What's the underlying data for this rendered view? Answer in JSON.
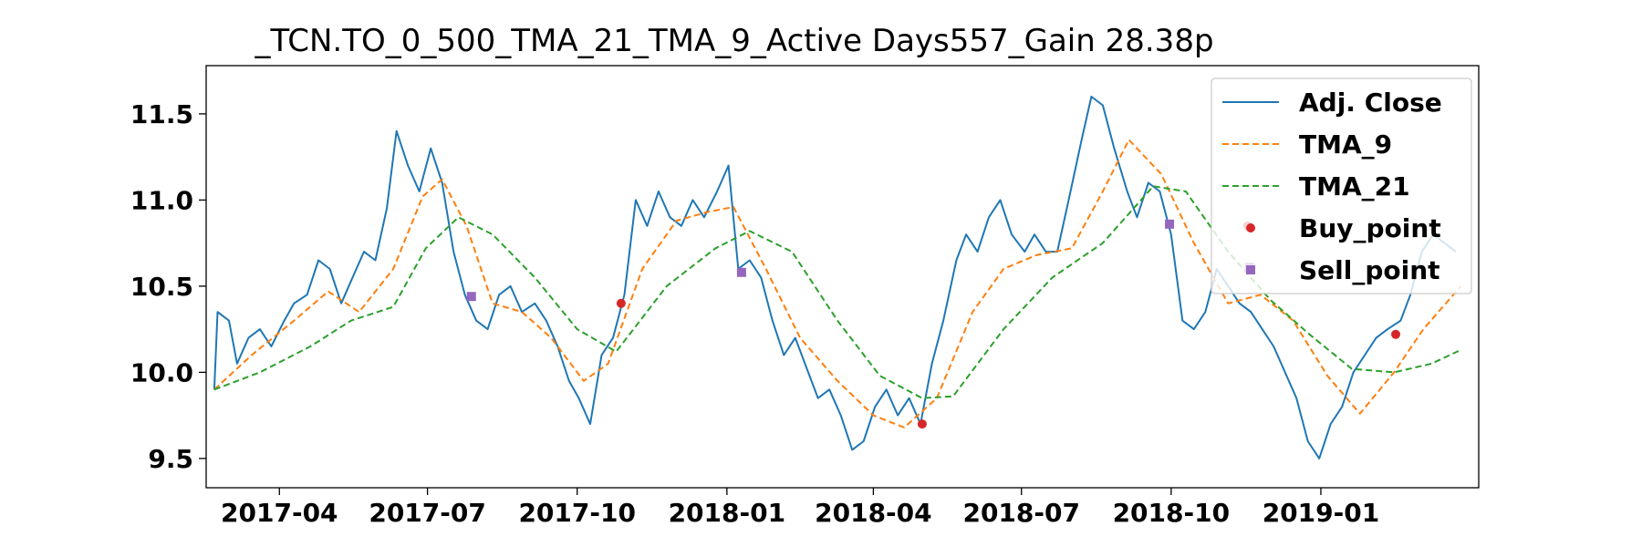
{
  "chart_data": {
    "type": "line",
    "title": "_TCN.TO_0_500_TMA_21_TMA_9_Active Days557_Gain  28.38p",
    "xlabel": "",
    "ylabel": "",
    "x_range": [
      "2017-02-15",
      "2019-04-08"
    ],
    "ylim": [
      9.33,
      11.78
    ],
    "x_ticks": [
      "2017-04",
      "2017-07",
      "2017-10",
      "2018-01",
      "2018-04",
      "2018-07",
      "2018-10",
      "2019-01"
    ],
    "y_ticks": [
      9.5,
      10.0,
      10.5,
      11.0,
      11.5
    ],
    "y_tick_labels": [
      "9.5",
      "10.0",
      "10.5",
      "11.0",
      "11.5"
    ],
    "grid": false,
    "legend_position": "top-right",
    "series": [
      {
        "name": "Adj. Close",
        "style": "solid",
        "color": "#1f77b4",
        "x": [
          "2017-02-20",
          "2017-02-22",
          "2017-03-01",
          "2017-03-06",
          "2017-03-13",
          "2017-03-20",
          "2017-03-27",
          "2017-04-04",
          "2017-04-10",
          "2017-04-18",
          "2017-04-25",
          "2017-05-02",
          "2017-05-09",
          "2017-05-16",
          "2017-05-23",
          "2017-05-30",
          "2017-06-06",
          "2017-06-12",
          "2017-06-19",
          "2017-06-26",
          "2017-07-03",
          "2017-07-10",
          "2017-07-17",
          "2017-07-24",
          "2017-07-31",
          "2017-08-07",
          "2017-08-14",
          "2017-08-21",
          "2017-08-28",
          "2017-09-05",
          "2017-09-12",
          "2017-09-19",
          "2017-09-26",
          "2017-10-02",
          "2017-10-09",
          "2017-10-16",
          "2017-10-23",
          "2017-10-30",
          "2017-11-06",
          "2017-11-13",
          "2017-11-20",
          "2017-11-27",
          "2017-12-04",
          "2017-12-11",
          "2017-12-18",
          "2017-12-26",
          "2018-01-02",
          "2018-01-08",
          "2018-01-15",
          "2018-01-22",
          "2018-01-29",
          "2018-02-05",
          "2018-02-12",
          "2018-02-20",
          "2018-02-26",
          "2018-03-05",
          "2018-03-12",
          "2018-03-19",
          "2018-03-26",
          "2018-04-02",
          "2018-04-09",
          "2018-04-16",
          "2018-04-23",
          "2018-04-30",
          "2018-05-07",
          "2018-05-14",
          "2018-05-22",
          "2018-05-28",
          "2018-06-04",
          "2018-06-11",
          "2018-06-18",
          "2018-06-25",
          "2018-07-03",
          "2018-07-09",
          "2018-07-16",
          "2018-07-23",
          "2018-07-30",
          "2018-08-07",
          "2018-08-13",
          "2018-08-20",
          "2018-08-27",
          "2018-09-04",
          "2018-09-10",
          "2018-09-17",
          "2018-09-24",
          "2018-10-01",
          "2018-10-08",
          "2018-10-15",
          "2018-10-22",
          "2018-10-29",
          "2018-11-05",
          "2018-11-12",
          "2018-11-19",
          "2018-11-26",
          "2018-12-03",
          "2018-12-10",
          "2018-12-17",
          "2018-12-24",
          "2018-12-31",
          "2019-01-07",
          "2019-01-14",
          "2019-01-21",
          "2019-01-28",
          "2019-02-04",
          "2019-02-11",
          "2019-02-19",
          "2019-02-25",
          "2019-03-04",
          "2019-03-11",
          "2019-03-18",
          "2019-03-25"
        ],
        "values": [
          9.9,
          10.35,
          10.3,
          10.05,
          10.2,
          10.25,
          10.15,
          10.3,
          10.4,
          10.45,
          10.65,
          10.6,
          10.4,
          10.55,
          10.7,
          10.65,
          10.95,
          11.4,
          11.2,
          11.05,
          11.3,
          11.1,
          10.7,
          10.45,
          10.3,
          10.25,
          10.45,
          10.5,
          10.35,
          10.4,
          10.3,
          10.15,
          9.95,
          9.85,
          9.7,
          10.1,
          10.2,
          10.45,
          11.0,
          10.85,
          11.05,
          10.9,
          10.85,
          11.0,
          10.9,
          11.05,
          11.2,
          10.6,
          10.65,
          10.55,
          10.3,
          10.1,
          10.2,
          10.0,
          9.85,
          9.9,
          9.75,
          9.55,
          9.6,
          9.8,
          9.9,
          9.75,
          9.85,
          9.7,
          10.05,
          10.3,
          10.65,
          10.8,
          10.7,
          10.9,
          11.0,
          10.8,
          10.7,
          10.8,
          10.7,
          10.7,
          11.0,
          11.35,
          11.6,
          11.55,
          11.3,
          11.05,
          10.9,
          11.1,
          11.05,
          10.8,
          10.3,
          10.25,
          10.35,
          10.6,
          10.5,
          10.4,
          10.35,
          10.25,
          10.15,
          10.0,
          9.85,
          9.6,
          9.5,
          9.7,
          9.8,
          10.0,
          10.1,
          10.2,
          10.25,
          10.3,
          10.45,
          10.7,
          10.8,
          10.75,
          10.7
        ]
      },
      {
        "name": "TMA_9",
        "style": "dashed",
        "color": "#ff7f0e",
        "x": [
          "2017-02-20",
          "2017-03-15",
          "2017-04-10",
          "2017-05-01",
          "2017-05-20",
          "2017-06-10",
          "2017-06-28",
          "2017-07-10",
          "2017-07-25",
          "2017-08-10",
          "2017-08-28",
          "2017-09-15",
          "2017-10-05",
          "2017-10-20",
          "2017-11-10",
          "2017-12-01",
          "2017-12-20",
          "2018-01-05",
          "2018-01-25",
          "2018-02-15",
          "2018-03-10",
          "2018-04-01",
          "2018-04-20",
          "2018-05-10",
          "2018-06-01",
          "2018-06-20",
          "2018-07-10",
          "2018-08-01",
          "2018-08-20",
          "2018-09-05",
          "2018-09-25",
          "2018-10-15",
          "2018-11-05",
          "2018-11-25",
          "2018-12-15",
          "2019-01-05",
          "2019-01-25",
          "2019-02-15",
          "2019-03-05",
          "2019-03-28"
        ],
        "values": [
          9.9,
          10.1,
          10.3,
          10.47,
          10.35,
          10.6,
          11.02,
          11.12,
          10.85,
          10.4,
          10.35,
          10.2,
          9.95,
          10.05,
          10.6,
          10.88,
          10.93,
          10.96,
          10.6,
          10.2,
          9.95,
          9.75,
          9.68,
          9.85,
          10.35,
          10.6,
          10.68,
          10.72,
          11.05,
          11.35,
          11.15,
          10.75,
          10.4,
          10.45,
          10.3,
          9.98,
          9.76,
          10.0,
          10.25,
          10.5
        ]
      },
      {
        "name": "TMA_21",
        "style": "dashed",
        "color": "#2ca02c",
        "x": [
          "2017-02-20",
          "2017-03-20",
          "2017-04-20",
          "2017-05-15",
          "2017-06-10",
          "2017-06-30",
          "2017-07-20",
          "2017-08-10",
          "2017-09-05",
          "2017-10-01",
          "2017-10-25",
          "2017-11-25",
          "2017-12-25",
          "2018-01-15",
          "2018-02-10",
          "2018-03-10",
          "2018-04-05",
          "2018-05-01",
          "2018-05-20",
          "2018-06-20",
          "2018-07-20",
          "2018-08-20",
          "2018-09-20",
          "2018-10-10",
          "2018-11-05",
          "2018-12-01",
          "2018-12-25",
          "2019-01-20",
          "2019-02-15",
          "2019-03-10",
          "2019-03-28"
        ],
        "values": [
          9.9,
          10.0,
          10.15,
          10.3,
          10.38,
          10.72,
          10.9,
          10.8,
          10.55,
          10.25,
          10.12,
          10.5,
          10.72,
          10.82,
          10.7,
          10.3,
          9.98,
          9.85,
          9.86,
          10.25,
          10.55,
          10.75,
          11.08,
          11.05,
          10.7,
          10.42,
          10.22,
          10.02,
          10.0,
          10.05,
          10.13
        ]
      }
    ],
    "markers": [
      {
        "name": "Buy_point",
        "color": "#d62728",
        "shape": "circle",
        "points": [
          {
            "x": "2017-10-28",
            "y": 10.4
          },
          {
            "x": "2018-05-01",
            "y": 9.7
          },
          {
            "x": "2018-11-17",
            "y": 10.85
          },
          {
            "x": "2019-02-16",
            "y": 10.22
          }
        ]
      },
      {
        "name": "Sell_point",
        "color": "#9467bd",
        "shape": "square",
        "points": [
          {
            "x": "2017-07-28",
            "y": 10.44
          },
          {
            "x": "2018-01-10",
            "y": 10.58
          },
          {
            "x": "2018-09-30",
            "y": 10.86
          },
          {
            "x": "2018-11-18",
            "y": 10.61
          }
        ]
      }
    ]
  }
}
